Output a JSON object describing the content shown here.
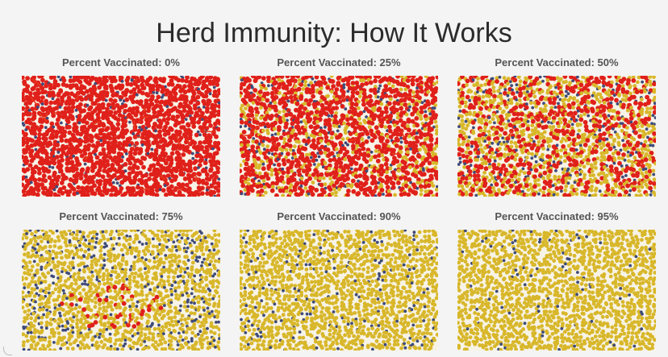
{
  "title": "Herd Immunity: How It Works",
  "colors": {
    "background": "#f4f4f4",
    "infected": "#e0201a",
    "vaccinated": "#d8b72a",
    "unvaccinated_healthy": "#3e4a7a",
    "infected_link": "#e63a1e"
  },
  "panels": [
    {
      "label": "Percent Vaccinated: 0%",
      "percent_vaccinated": 0,
      "infected_share_of_unvaccinated": 0.92
    },
    {
      "label": "Percent Vaccinated: 25%",
      "percent_vaccinated": 25,
      "infected_share_of_unvaccinated": 0.88
    },
    {
      "label": "Percent Vaccinated: 50%",
      "percent_vaccinated": 50,
      "infected_share_of_unvaccinated": 0.72
    },
    {
      "label": "Percent Vaccinated: 75%",
      "percent_vaccinated": 75,
      "infected_share_of_unvaccinated": 0.08
    },
    {
      "label": "Percent Vaccinated: 90%",
      "percent_vaccinated": 90,
      "infected_share_of_unvaccinated": 0.0
    },
    {
      "label": "Percent Vaccinated: 95%",
      "percent_vaccinated": 95,
      "infected_share_of_unvaccinated": 0.0
    }
  ]
}
